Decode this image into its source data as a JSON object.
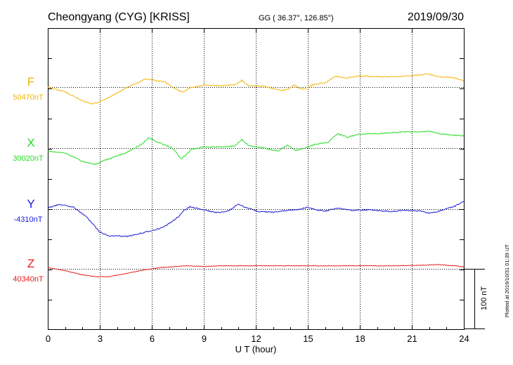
{
  "header": {
    "station": "Cheongyang (CYG)  [KRISS]",
    "coords": "GG ( 36.37°, 126.85°)",
    "date": "2019/09/30"
  },
  "footer_note": "Plotted at 2019/10/31 01:39 UT",
  "chart_data": {
    "type": "line",
    "xlabel": "U T (hour)",
    "xlim": [
      0,
      24
    ],
    "x_ticks": [
      "0",
      "3",
      "6",
      "9",
      "12",
      "15",
      "18",
      "21",
      "24"
    ],
    "scale_bar": "100 nT",
    "series": [
      {
        "name": "F",
        "baseline": "50470nT",
        "color": "#f4b400",
        "points": [
          [
            0,
            0
          ],
          [
            1,
            -8
          ],
          [
            2,
            -23
          ],
          [
            2.6,
            -28
          ],
          [
            3.2,
            -22
          ],
          [
            4.5,
            -2
          ],
          [
            5.6,
            13
          ],
          [
            6,
            12
          ],
          [
            6.8,
            8
          ],
          [
            7.3,
            -2
          ],
          [
            7.8,
            -9
          ],
          [
            8.2,
            -1
          ],
          [
            9,
            3
          ],
          [
            10,
            2
          ],
          [
            10.8,
            4
          ],
          [
            11.2,
            11
          ],
          [
            11.6,
            2
          ],
          [
            12.5,
            1
          ],
          [
            13.5,
            -6
          ],
          [
            13.9,
            -3
          ],
          [
            14.2,
            3
          ],
          [
            14.7,
            -4
          ],
          [
            15.4,
            5
          ],
          [
            16,
            7
          ],
          [
            16.6,
            18
          ],
          [
            17.2,
            15
          ],
          [
            18,
            18
          ],
          [
            19.5,
            17
          ],
          [
            20.5,
            18
          ],
          [
            21.5,
            20
          ],
          [
            21.9,
            22
          ],
          [
            22.5,
            17
          ],
          [
            23.3,
            16
          ],
          [
            24,
            10
          ]
        ]
      },
      {
        "name": "X",
        "baseline": "30020nT",
        "color": "#22dd22",
        "points": [
          [
            0,
            -5
          ],
          [
            1,
            -8
          ],
          [
            2,
            -22
          ],
          [
            2.7,
            -27
          ],
          [
            3.3,
            -20
          ],
          [
            4.5,
            -8
          ],
          [
            5.5,
            8
          ],
          [
            5.8,
            17
          ],
          [
            6.5,
            8
          ],
          [
            7.2,
            0
          ],
          [
            7.7,
            -18
          ],
          [
            8.3,
            -2
          ],
          [
            9,
            2
          ],
          [
            10.2,
            2
          ],
          [
            10.8,
            4
          ],
          [
            11.2,
            14
          ],
          [
            11.6,
            4
          ],
          [
            12.5,
            0
          ],
          [
            13.3,
            -5
          ],
          [
            13.8,
            5
          ],
          [
            14.3,
            -4
          ],
          [
            14.8,
            0
          ],
          [
            15.5,
            7
          ],
          [
            16.2,
            10
          ],
          [
            16.7,
            24
          ],
          [
            17.3,
            18
          ],
          [
            18,
            23
          ],
          [
            19,
            24
          ],
          [
            20.5,
            27
          ],
          [
            21.5,
            27
          ],
          [
            22,
            28
          ],
          [
            22.6,
            24
          ],
          [
            23.5,
            21
          ],
          [
            24,
            20
          ]
        ]
      },
      {
        "name": "Y",
        "baseline": "-4310nT",
        "color": "#1a1ad6",
        "points": [
          [
            0,
            2
          ],
          [
            0.7,
            8
          ],
          [
            1.5,
            3
          ],
          [
            2.2,
            -12
          ],
          [
            3,
            -38
          ],
          [
            3.5,
            -44
          ],
          [
            4.6,
            -45
          ],
          [
            5.5,
            -39
          ],
          [
            6.5,
            -32
          ],
          [
            7.1,
            -22
          ],
          [
            7.6,
            -11
          ],
          [
            7.8,
            -3
          ],
          [
            8.2,
            4
          ],
          [
            9,
            -1
          ],
          [
            9.8,
            -6
          ],
          [
            10.5,
            -2
          ],
          [
            11,
            9
          ],
          [
            11.3,
            4
          ],
          [
            12.2,
            -4
          ],
          [
            13,
            -5
          ],
          [
            13.7,
            -2
          ],
          [
            14.3,
            -1
          ],
          [
            15,
            3
          ],
          [
            15.5,
            -1
          ],
          [
            16,
            -3
          ],
          [
            16.8,
            2
          ],
          [
            17.5,
            -2
          ],
          [
            18.5,
            -1
          ],
          [
            19.8,
            -4
          ],
          [
            20.5,
            -2
          ],
          [
            21.5,
            -3
          ],
          [
            22,
            -7
          ],
          [
            22.6,
            -3
          ],
          [
            23.5,
            5
          ],
          [
            24,
            13
          ]
        ]
      },
      {
        "name": "Z",
        "baseline": "40340nT",
        "color": "#e61a1a",
        "points": [
          [
            0,
            2
          ],
          [
            1,
            -3
          ],
          [
            2,
            -10
          ],
          [
            2.8,
            -13
          ],
          [
            3.5,
            -13
          ],
          [
            4.5,
            -8
          ],
          [
            5.5,
            -2
          ],
          [
            6.5,
            2
          ],
          [
            8,
            5
          ],
          [
            9,
            4
          ],
          [
            10,
            5
          ],
          [
            12,
            5
          ],
          [
            14,
            5
          ],
          [
            16,
            5
          ],
          [
            18,
            5
          ],
          [
            20,
            5
          ],
          [
            21.5,
            6
          ],
          [
            22.5,
            7
          ],
          [
            23.5,
            5
          ],
          [
            24,
            3
          ]
        ]
      }
    ]
  }
}
